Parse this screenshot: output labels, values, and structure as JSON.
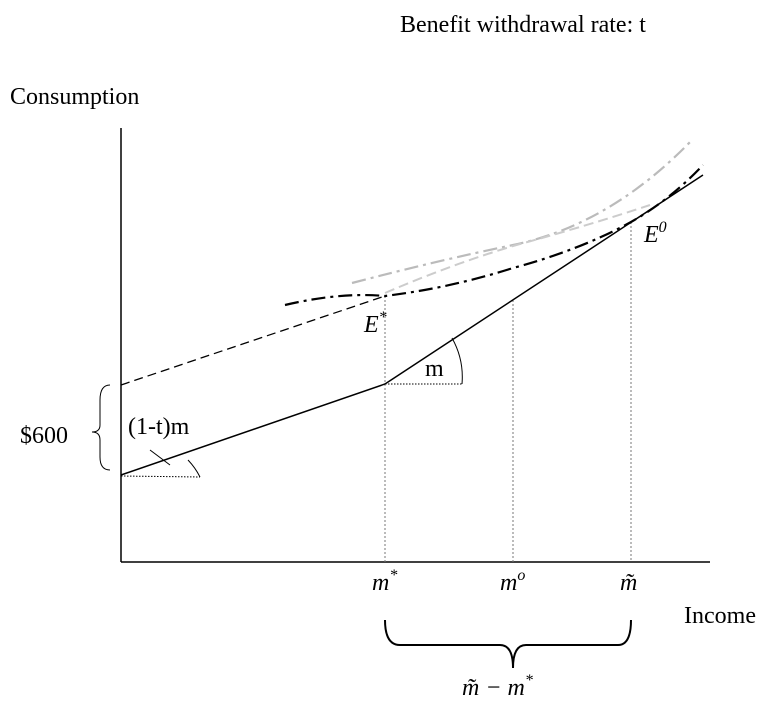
{
  "title": "Benefit withdrawal rate: t",
  "y_axis_label": "Consumption",
  "x_axis_label": "Income",
  "benefit_label": "$600",
  "slope_labels": {
    "lower": "(1-t)m",
    "upper": "m"
  },
  "points": {
    "e_star": {
      "base": "E",
      "sup": "*"
    },
    "e_zero": {
      "base": "E",
      "sup": "0"
    }
  },
  "x_markers": [
    {
      "base": "m",
      "sup": "*"
    },
    {
      "base": "m",
      "sup": "o"
    },
    {
      "base": "m̃",
      "sup": ""
    }
  ],
  "brace_label": {
    "base": "m̃ − m",
    "sup": "*"
  }
}
